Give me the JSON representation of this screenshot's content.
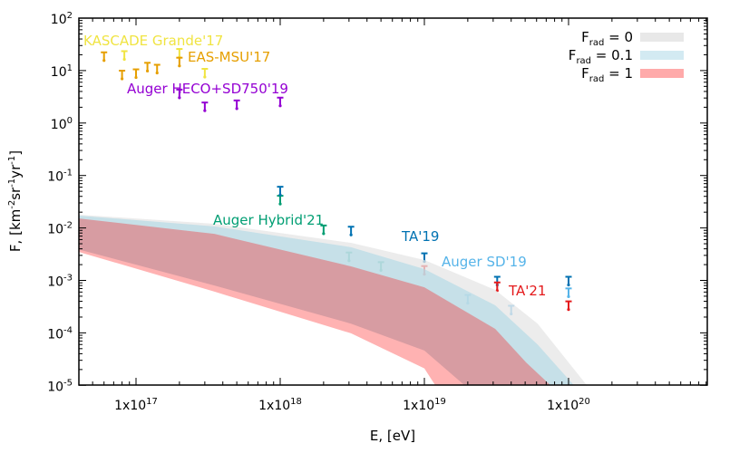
{
  "chart_data": {
    "type": "area",
    "xlabel": "E, [eV]",
    "ylabel_main": "F, [km",
    "ylabel_parts": [
      "-2",
      "sr",
      "-1",
      "yr",
      "-1",
      "]"
    ],
    "xscale": "log",
    "yscale": "log",
    "xlim": [
      4e+16,
      9e+20
    ],
    "ylim": [
      1e-05,
      100
    ],
    "x_ticks": [
      {
        "value": 1e+17,
        "base": "1x10",
        "exp": "17"
      },
      {
        "value": 1e+18,
        "base": "1x10",
        "exp": "18"
      },
      {
        "value": 1e+19,
        "base": "1x10",
        "exp": "19"
      },
      {
        "value": 1e+20,
        "base": "1x10",
        "exp": "20"
      }
    ],
    "y_ticks": [
      {
        "value": 100,
        "base": "10",
        "exp": "2"
      },
      {
        "value": 10,
        "base": "10",
        "exp": "1"
      },
      {
        "value": 1,
        "base": "10",
        "exp": "0"
      },
      {
        "value": 0.1,
        "base": "10",
        "exp": "-1"
      },
      {
        "value": 0.01,
        "base": "10",
        "exp": "-2"
      },
      {
        "value": 0.001,
        "base": "10",
        "exp": "-3"
      },
      {
        "value": 0.0001,
        "base": "10",
        "exp": "-4"
      },
      {
        "value": 1e-05,
        "base": "10",
        "exp": "-5"
      }
    ],
    "legend_position": "top-right",
    "bands": [
      {
        "name": "F",
        "sub": "rad",
        "suffix": " = 0",
        "color": "#e6e6e6",
        "upper": [
          [
            4e+16,
            0.0179
          ],
          [
            3.5e+17,
            0.012
          ],
          [
            3.1e+18,
            0.0052
          ],
          [
            1e+19,
            0.00245
          ],
          [
            3.1e+19,
            0.00066
          ],
          [
            6.1e+19,
            0.00015
          ],
          [
            1.34e+20,
            1e-05
          ]
        ],
        "lower": [
          [
            4e+16,
            0.0039
          ],
          [
            3.5e+17,
            0.0008
          ],
          [
            3.1e+18,
            0.00015
          ],
          [
            1e+19,
            4.6e-05
          ],
          [
            1.9e+19,
            1e-05
          ]
        ]
      },
      {
        "name": "F",
        "sub": "rad",
        "suffix": " = 0.1",
        "color": "#add8e6",
        "upper": [
          [
            4e+16,
            0.0172
          ],
          [
            3.5e+17,
            0.0107
          ],
          [
            3.1e+18,
            0.0043
          ],
          [
            1e+19,
            0.00164
          ],
          [
            3.1e+19,
            0.000335
          ],
          [
            6.1e+19,
            6e-05
          ],
          [
            1.09e+20,
            1e-05
          ]
        ],
        "lower": [
          [
            4e+16,
            0.0039
          ],
          [
            3.5e+17,
            0.0008
          ],
          [
            3.1e+18,
            0.00015
          ],
          [
            1e+19,
            4.6e-05
          ],
          [
            1.9e+19,
            1e-05
          ]
        ]
      },
      {
        "name": "F",
        "sub": "rad",
        "suffix": " = 1",
        "color": "#ff0000",
        "upper": [
          [
            4e+16,
            0.0152
          ],
          [
            3.5e+17,
            0.0077
          ],
          [
            3.1e+18,
            0.00185
          ],
          [
            1e+19,
            0.00074
          ],
          [
            3.1e+19,
            0.000119
          ],
          [
            5.1e+19,
            2.7e-05
          ],
          [
            7.5e+19,
            1e-05
          ]
        ],
        "lower": [
          [
            4e+16,
            0.0035
          ],
          [
            3.5e+17,
            0.00061
          ],
          [
            3.1e+18,
            9.8e-05
          ],
          [
            1e+19,
            2.1e-05
          ],
          [
            1.19e+19,
            1e-05
          ]
        ]
      }
    ],
    "series": [
      {
        "name": "KASCADE Grande'17",
        "color": "#f0e442",
        "points": [
          [
            8.3e+16,
            20
          ],
          [
            2e+17,
            22
          ],
          [
            3e+17,
            9.2
          ]
        ]
      },
      {
        "name": "EAS-MSU'17",
        "color": "#e69f00",
        "points": [
          [
            6e+16,
            19
          ],
          [
            8e+16,
            8.5
          ],
          [
            1e+17,
            9
          ],
          [
            1.2e+17,
            12
          ],
          [
            1.4e+17,
            11
          ],
          [
            2e+17,
            15
          ]
        ]
      },
      {
        "name": "Auger HECO+SD750'19",
        "color": "#9400d3",
        "points": [
          [
            2e+17,
            3.7
          ],
          [
            3e+17,
            2.1
          ],
          [
            5e+17,
            2.3
          ],
          [
            1e+18,
            2.6
          ]
        ]
      },
      {
        "name": "Auger Hybrid'21",
        "color": "#009e73",
        "points": [
          [
            1e+18,
            0.035
          ],
          [
            2e+18,
            0.0095
          ],
          [
            3e+18,
            0.0029
          ],
          [
            5e+18,
            0.0019
          ]
        ]
      },
      {
        "name": "TA'19",
        "color": "#0072b2",
        "points": [
          [
            1e+18,
            0.052
          ],
          [
            3.1e+18,
            0.009
          ],
          [
            1e+19,
            0.0028
          ],
          [
            3.2e+19,
            0.001
          ],
          [
            1e+20,
            0.001
          ]
        ]
      },
      {
        "name": "Auger SD'19",
        "color": "#56b4e9",
        "points": [
          [
            2e+19,
            0.00045
          ],
          [
            4e+19,
            0.00028
          ],
          [
            1e+20,
            0.0006
          ]
        ]
      },
      {
        "name": "TA'21",
        "color": "#e41a1c",
        "points": [
          [
            1e+19,
            0.0016
          ],
          [
            3.2e+19,
            0.00078
          ],
          [
            1e+20,
            0.00034
          ]
        ]
      }
    ]
  }
}
